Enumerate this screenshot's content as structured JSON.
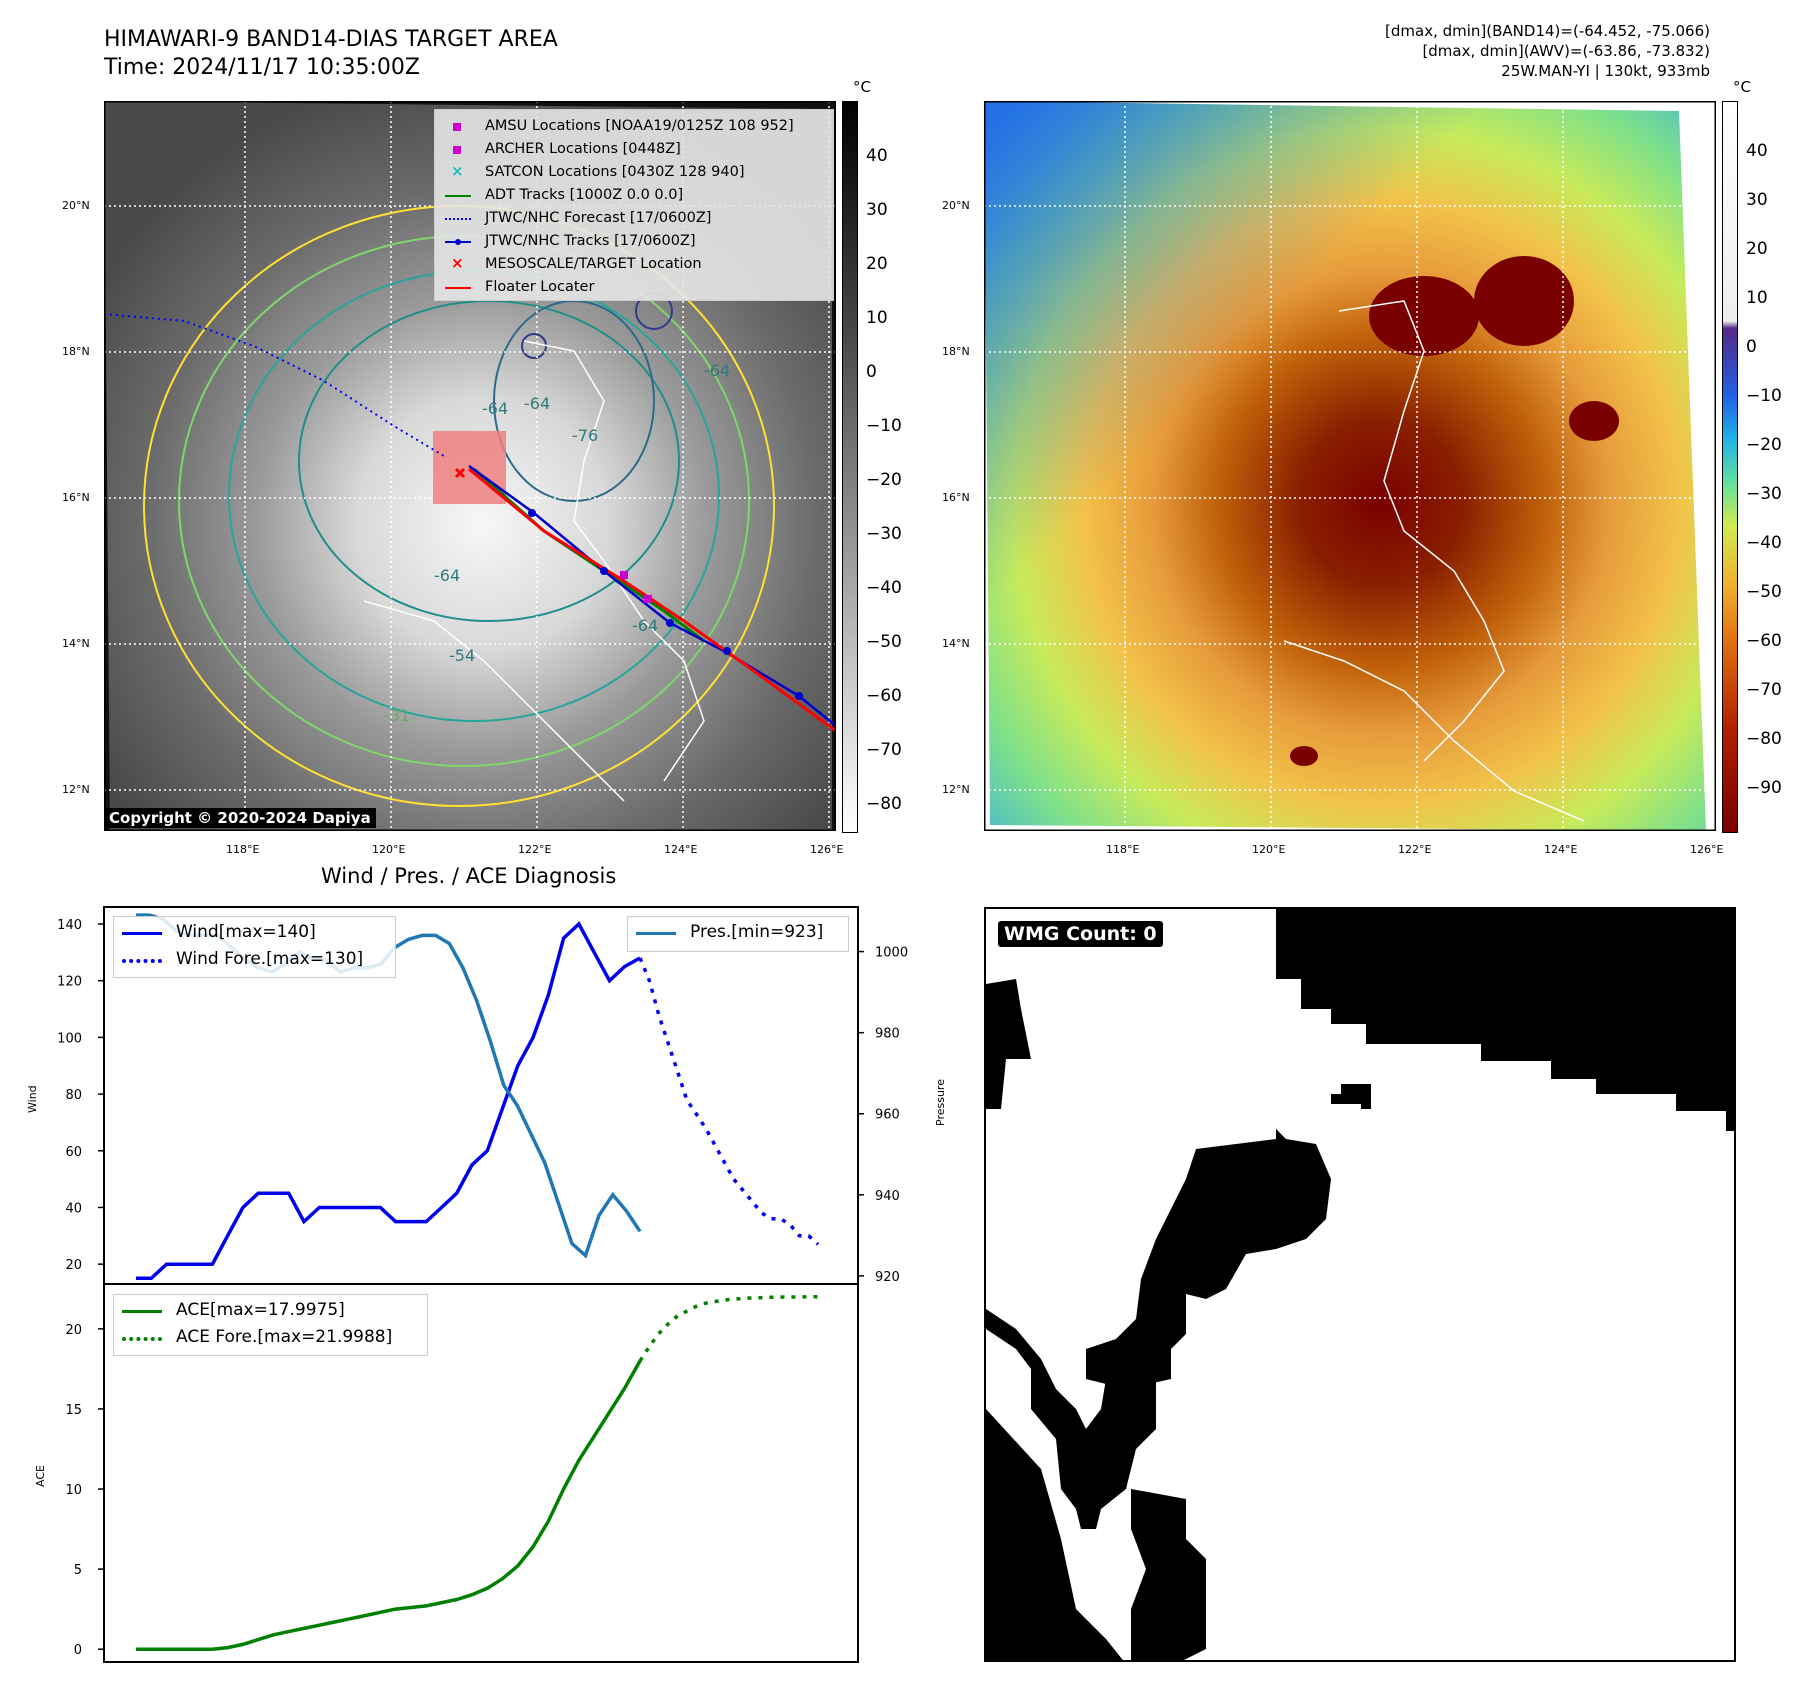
{
  "header": {
    "title": "HIMAWARI-9 BAND14-DIAS TARGET AREA",
    "time": "Time: 2024/11/17 10:35:00Z",
    "stats_line1": "[dmax, dmin](BAND14)=(-64.452, -75.066)",
    "stats_line2": "[dmax, dmin](AWV)=(-63.86, -73.832)",
    "stats_line3": "25W.MAN-YI | 130kt, 933mb"
  },
  "colors": {
    "wind": "#0000ee",
    "pres": "#1f77b4",
    "ace": "#008000",
    "amsu": "#cc00cc",
    "archer": "#cc00cc",
    "satcon": "#22bbbb",
    "adt": "#008000",
    "jtwc_forecast": "#0000ff",
    "jtwc_tracks": "#0000cc",
    "mesoscale": "#ff0000",
    "floater": "#ff0000",
    "target_box": "#f08080"
  },
  "maps": {
    "lat_labels": [
      "20°N",
      "18°N",
      "16°N",
      "14°N",
      "12°N"
    ],
    "lon_labels": [
      "118°E",
      "120°E",
      "122°E",
      "124°E",
      "126°E"
    ],
    "copyright": "Copyright © 2020-2024 Dapiya",
    "contour_labels": [
      "-64",
      "-64",
      "-64",
      "-76",
      "-64",
      "-54",
      "-31",
      "-64"
    ],
    "left_colorbar": {
      "unit": "°C",
      "ticks": [
        "40",
        "30",
        "20",
        "10",
        "0",
        "−10",
        "−20",
        "−30",
        "−40",
        "−50",
        "−60",
        "−70",
        "−80"
      ]
    },
    "right_colorbar": {
      "unit": "°C",
      "ticks": [
        "40",
        "30",
        "20",
        "10",
        "0",
        "−10",
        "−20",
        "−30",
        "−40",
        "−50",
        "−60",
        "−70",
        "−80",
        "−90"
      ]
    },
    "legend": [
      {
        "label": "AMSU Locations [NOAA19/0125Z 108 952]",
        "marker": "square",
        "color_key": "amsu"
      },
      {
        "label": "ARCHER Locations [0448Z]",
        "marker": "square",
        "color_key": "archer"
      },
      {
        "label": "SATCON Locations [0430Z 128 940]",
        "marker": "x",
        "color_key": "satcon"
      },
      {
        "label": "ADT Tracks [1000Z 0.0 0.0]",
        "marker": "line",
        "color_key": "adt"
      },
      {
        "label": "JTWC/NHC Forecast [17/0600Z]",
        "marker": "dotted",
        "color_key": "jtwc_forecast"
      },
      {
        "label": "JTWC/NHC Tracks [17/0600Z]",
        "marker": "line-dot",
        "color_key": "jtwc_tracks"
      },
      {
        "label": "MESOSCALE/TARGET Location",
        "marker": "x",
        "color_key": "mesoscale"
      },
      {
        "label": "Floater Locater",
        "marker": "line",
        "color_key": "floater"
      }
    ]
  },
  "wmg": {
    "badge": "WMG Count: 0"
  },
  "chart_data": [
    {
      "type": "line",
      "title": "Wind / Pres. / ACE Diagnosis",
      "ylabel": "Wind",
      "y2label": "Pressure",
      "ylim": [
        13,
        146
      ],
      "y2lim": [
        918,
        1011
      ],
      "yticks": [
        20,
        40,
        60,
        80,
        100,
        120,
        140
      ],
      "y2ticks": [
        920,
        940,
        960,
        980,
        1000
      ],
      "legend_left": [
        "Wind[max=140]",
        "Wind Fore.[max=130]"
      ],
      "legend_right": [
        "Pres.[min=923]"
      ],
      "series": [
        {
          "name": "Wind[max=140]",
          "axis": "left",
          "style": "solid",
          "values": [
            15,
            15,
            20,
            20,
            20,
            20,
            30,
            40,
            45,
            45,
            45,
            35,
            40,
            40,
            40,
            40,
            40,
            35,
            35,
            35,
            40,
            45,
            55,
            60,
            75,
            90,
            100,
            115,
            135,
            140,
            130,
            120,
            125,
            128
          ]
        },
        {
          "name": "Wind Fore.[max=130]",
          "axis": "left",
          "style": "dotted",
          "values": [
            128,
            120,
            108,
            98,
            88,
            78,
            73,
            68,
            62,
            56,
            50,
            46,
            42,
            38,
            36,
            36,
            34,
            30,
            30,
            27
          ]
        },
        {
          "name": "Pres.[min=923]",
          "axis": "right",
          "style": "solid",
          "values": [
            1009,
            1009,
            1008,
            1005,
            1004,
            1004,
            1004,
            1001,
            998,
            996,
            995,
            997,
            1000,
            998,
            998,
            995,
            996,
            996,
            997,
            1001,
            1003,
            1004,
            1004,
            1002,
            996,
            988,
            978,
            967,
            962,
            955,
            948,
            938,
            928,
            925,
            935,
            940,
            936,
            931
          ]
        }
      ]
    },
    {
      "type": "line",
      "ylabel": "ACE",
      "ylim": [
        -0.8,
        22.8
      ],
      "yticks": [
        0,
        5,
        10,
        15,
        20
      ],
      "legend": [
        "ACE[max=17.9975]",
        "ACE Fore.[max=21.9988]"
      ],
      "series": [
        {
          "name": "ACE[max=17.9975]",
          "style": "solid",
          "values": [
            0,
            0,
            0,
            0,
            0,
            0,
            0.1,
            0.3,
            0.6,
            0.9,
            1.1,
            1.3,
            1.5,
            1.7,
            1.9,
            2.1,
            2.3,
            2.5,
            2.6,
            2.7,
            2.9,
            3.1,
            3.4,
            3.8,
            4.4,
            5.2,
            6.4,
            8.0,
            10.0,
            11.8,
            13.3,
            14.8,
            16.3,
            17.9975
          ]
        },
        {
          "name": "ACE Fore.[max=21.9988]",
          "style": "dotted",
          "values": [
            17.9975,
            18.9,
            19.7,
            20.3,
            20.8,
            21.1,
            21.4,
            21.6,
            21.7,
            21.8,
            21.85,
            21.9,
            21.93,
            21.95,
            21.97,
            21.98,
            21.99,
            21.99,
            21.9988,
            21.9988
          ]
        }
      ]
    }
  ]
}
